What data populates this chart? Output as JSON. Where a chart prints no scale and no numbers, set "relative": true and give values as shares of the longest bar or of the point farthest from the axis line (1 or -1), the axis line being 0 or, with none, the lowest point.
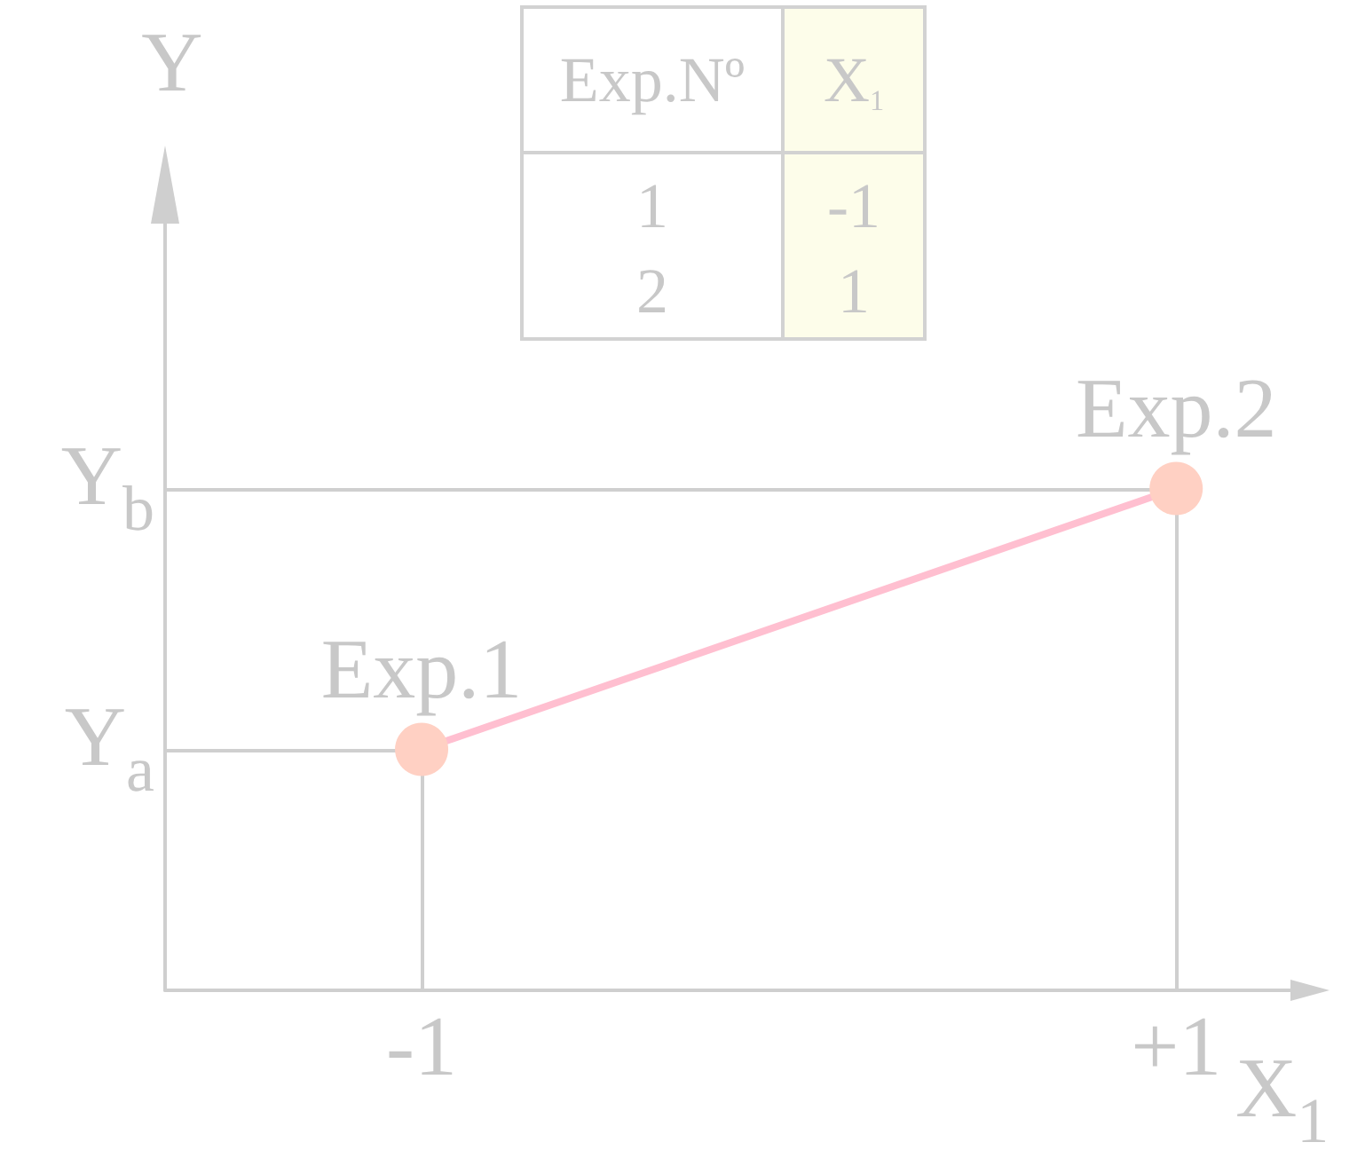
{
  "chart_data": {
    "type": "line",
    "xlabel": "X$_{1}$",
    "ylabel": "Y",
    "x": [
      -1,
      1
    ],
    "values": [
      0.48,
      1
    ],
    "relative": true,
    "color": "#ffbfd0",
    "colors": [
      "#ffd0c3",
      "#ffd0c3"
    ],
    "marker": "circle",
    "line_style": "solid",
    "xlim": [
      -1.68,
      1.35
    ],
    "xticks": [
      -1,
      {
        "value": 1,
        "label": "+1"
      }
    ],
    "annotations": [
      {
        "text": "Exp.1",
        "x": -1,
        "y": 0.48
      },
      {
        "text": "Exp.2",
        "x": 1,
        "y": 1
      },
      "Y$_{a}$",
      "Y$_{b}$",
      "Exp.Nº",
      "X$_{1}$",
      "1",
      "-1",
      "2",
      "1"
    ]
  }
}
